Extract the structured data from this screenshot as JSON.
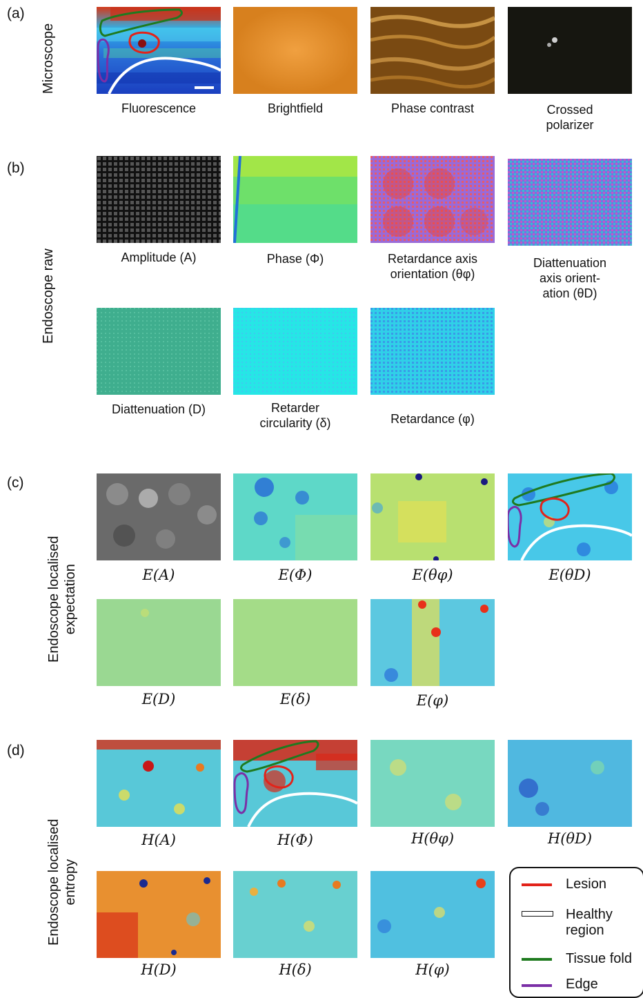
{
  "section_a": {
    "label": "(a)",
    "row_label": "Microscope",
    "captions": [
      "Fluorescence",
      "Brightfield",
      "Phase contrast",
      "Crossed\npolarizer"
    ]
  },
  "section_b": {
    "label": "(b)",
    "row_label": "Endoscope raw",
    "captions": [
      "Amplitude (A)",
      "Phase (Φ)",
      "Retardance axis\norientation (θφ)",
      "Diattenuation\naxis orient-\nation (θD)",
      "Diattenuation (D)",
      "Retarder\ncircularity (δ)",
      "Retardance (φ)"
    ]
  },
  "section_c": {
    "label": "(c)",
    "row_label": "Endoscope localised\nexpectation",
    "captions": [
      "E(A)",
      "E(Φ)",
      "E(θφ)",
      "E(θD)",
      "E(D)",
      "E(δ)",
      "E(φ)"
    ]
  },
  "section_d": {
    "label": "(d)",
    "row_label": "Endoscope localised\nentropy",
    "captions": [
      "H(A)",
      "H(Φ)",
      "H(θφ)",
      "H(θD)",
      "H(D)",
      "H(δ)",
      "H(φ)"
    ]
  },
  "legend": {
    "items": [
      {
        "label": "Lesion",
        "color": "#e2231a"
      },
      {
        "label": "Healthy\nregion",
        "color": "#ffffff"
      },
      {
        "label": "Tissue fold",
        "color": "#1f7a1f"
      },
      {
        "label": "Edge",
        "color": "#7b2fa6"
      }
    ]
  },
  "colors": {
    "lesion": "#e2231a",
    "healthy": "#ffffff",
    "fold": "#1f7a1f",
    "edge": "#7b2fa6"
  }
}
